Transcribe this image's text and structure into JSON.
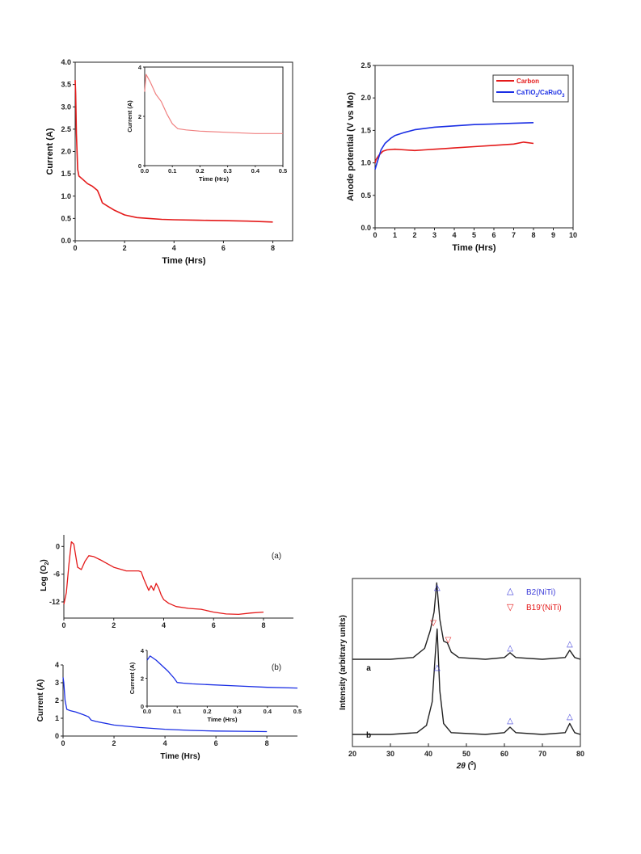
{
  "chart_data": [
    {
      "id": "current-main",
      "type": "line",
      "xlabel": "Time (Hrs)",
      "ylabel": "Current (A)",
      "xlim": [
        0,
        8.8
      ],
      "ylim": [
        0,
        4.0
      ],
      "xticks": [
        "0",
        "2",
        "4",
        "6",
        "8"
      ],
      "yticks": [
        "0.0",
        "0.5",
        "1.0",
        "1.5",
        "2.0",
        "2.5",
        "3.0",
        "3.5",
        "4.0"
      ],
      "series": [
        {
          "color": "#e41a1a",
          "x": [
            0,
            0.02,
            0.05,
            0.1,
            0.15,
            0.3,
            0.5,
            0.7,
            0.9,
            1.0,
            1.1,
            1.3,
            1.6,
            2.0,
            2.5,
            3.0,
            3.5,
            4.0,
            5.0,
            6.0,
            7.0,
            8.0
          ],
          "y": [
            3.6,
            3.3,
            2.4,
            1.6,
            1.45,
            1.38,
            1.28,
            1.22,
            1.13,
            1.0,
            0.85,
            0.78,
            0.68,
            0.58,
            0.52,
            0.5,
            0.48,
            0.47,
            0.46,
            0.45,
            0.44,
            0.42
          ]
        }
      ]
    },
    {
      "id": "current-inset",
      "type": "line",
      "xlabel": "Time (Hrs)",
      "ylabel": "Current (A)",
      "xlim": [
        0,
        0.5
      ],
      "ylim": [
        0,
        4
      ],
      "xticks": [
        "0.0",
        "0.1",
        "0.2",
        "0.3",
        "0.4",
        "0.5"
      ],
      "yticks": [
        "0",
        "2",
        "4"
      ],
      "series": [
        {
          "color": "#f08080",
          "x": [
            0,
            0.005,
            0.02,
            0.04,
            0.06,
            0.08,
            0.1,
            0.12,
            0.15,
            0.2,
            0.3,
            0.4,
            0.5
          ],
          "y": [
            3.0,
            3.7,
            3.4,
            2.9,
            2.6,
            2.1,
            1.7,
            1.5,
            1.45,
            1.4,
            1.35,
            1.3,
            1.3
          ]
        }
      ]
    },
    {
      "id": "anode-potential",
      "type": "line",
      "xlabel": "Time (Hrs)",
      "ylabel": "Anode potential (V vs Mo)",
      "xlim": [
        0,
        10
      ],
      "ylim": [
        0,
        2.5
      ],
      "xticks": [
        "0",
        "1",
        "2",
        "3",
        "4",
        "5",
        "6",
        "7",
        "8",
        "9",
        "10"
      ],
      "yticks": [
        "0.0",
        "0.5",
        "1.0",
        "1.5",
        "2.0",
        "2.5"
      ],
      "legend_position": "top-right",
      "series": [
        {
          "name": "Carbon",
          "color": "#e41a1a",
          "x": [
            0,
            0.05,
            0.2,
            0.4,
            0.6,
            1.0,
            1.5,
            2.0,
            2.5,
            3.0,
            3.5,
            4.0,
            5.0,
            6.0,
            7.0,
            7.5,
            8.0
          ],
          "y": [
            1.0,
            1.05,
            1.12,
            1.18,
            1.2,
            1.21,
            1.2,
            1.19,
            1.2,
            1.21,
            1.22,
            1.23,
            1.25,
            1.27,
            1.29,
            1.32,
            1.3
          ]
        },
        {
          "name": "CaTiO3/CaRuO3",
          "color": "#1a2ee4",
          "x": [
            0,
            0.05,
            0.1,
            0.2,
            0.3,
            0.5,
            0.8,
            1.0,
            1.5,
            2.0,
            3.0,
            4.0,
            5.0,
            6.0,
            7.0,
            8.0
          ],
          "y": [
            0.9,
            0.95,
            1.0,
            1.1,
            1.2,
            1.3,
            1.38,
            1.42,
            1.47,
            1.51,
            1.55,
            1.57,
            1.59,
            1.6,
            1.61,
            1.62
          ]
        }
      ]
    },
    {
      "id": "log-o2",
      "type": "line",
      "panel_label": "(a)",
      "xlabel": "Time (Hrs)",
      "ylabel": "Log (O2)",
      "xlim": [
        0,
        9.2
      ],
      "ylim": [
        -15.5,
        2.5
      ],
      "xticks": [
        "0",
        "2",
        "4",
        "6",
        "8"
      ],
      "yticks": [
        "0",
        "-6",
        "-12"
      ],
      "series": [
        {
          "color": "#e41a1a",
          "x": [
            0,
            0.1,
            0.2,
            0.3,
            0.4,
            0.55,
            0.7,
            0.85,
            1.0,
            1.2,
            1.5,
            2.0,
            2.5,
            3.0,
            3.1,
            3.2,
            3.4,
            3.5,
            3.6,
            3.7,
            3.8,
            3.9,
            4.0,
            4.2,
            4.5,
            5.0,
            5.5,
            6.0,
            6.5,
            7.0,
            7.5,
            8.0
          ],
          "y": [
            -12.5,
            -10,
            -4,
            1,
            0.5,
            -4.5,
            -5,
            -3.2,
            -2.0,
            -2.2,
            -3.0,
            -4.5,
            -5.3,
            -5.3,
            -5.5,
            -7,
            -9.5,
            -8.5,
            -9.5,
            -8,
            -9,
            -10.5,
            -11.5,
            -12.3,
            -13,
            -13.4,
            -13.6,
            -14.2,
            -14.6,
            -14.7,
            -14.4,
            -14.2
          ]
        }
      ]
    },
    {
      "id": "current-b",
      "type": "line",
      "panel_label": "(b)",
      "xlabel": "Time (Hrs)",
      "ylabel": "Current (A)",
      "xlim": [
        0,
        9.2
      ],
      "ylim": [
        0,
        4
      ],
      "xticks": [
        "0",
        "2",
        "4",
        "6",
        "8"
      ],
      "yticks": [
        "0",
        "1",
        "2",
        "3",
        "4"
      ],
      "series": [
        {
          "color": "#1a2ee4",
          "x": [
            0,
            0.03,
            0.08,
            0.15,
            0.3,
            0.5,
            0.8,
            1.0,
            1.1,
            1.3,
            2.0,
            3.0,
            4.0,
            5.0,
            6.0,
            7.0,
            8.0
          ],
          "y": [
            3.3,
            3.0,
            2.0,
            1.5,
            1.42,
            1.35,
            1.2,
            1.08,
            0.9,
            0.82,
            0.62,
            0.48,
            0.38,
            0.32,
            0.28,
            0.27,
            0.25
          ]
        }
      ]
    },
    {
      "id": "current-b-inset",
      "type": "line",
      "xlabel": "Time (Hrs)",
      "ylabel": "Current (A)",
      "xlim": [
        0,
        0.5
      ],
      "ylim": [
        0,
        4
      ],
      "xticks": [
        "0.0",
        "0.1",
        "0.2",
        "0.3",
        "0.4",
        "0.5"
      ],
      "yticks": [
        "0",
        "2",
        "4"
      ],
      "series": [
        {
          "color": "#1a2ee4",
          "x": [
            0,
            0.01,
            0.03,
            0.05,
            0.07,
            0.09,
            0.1,
            0.12,
            0.15,
            0.2,
            0.3,
            0.4,
            0.5
          ],
          "y": [
            3.3,
            3.6,
            3.3,
            2.9,
            2.5,
            2.0,
            1.7,
            1.65,
            1.6,
            1.55,
            1.45,
            1.35,
            1.3
          ]
        }
      ]
    },
    {
      "id": "xrd",
      "type": "line",
      "xlabel": "2θ (°)",
      "ylabel": "Intensity (arbitrary units)",
      "xlim": [
        20,
        80
      ],
      "xticks": [
        "20",
        "30",
        "40",
        "50",
        "60",
        "70",
        "80"
      ],
      "legend_position": "top-right",
      "legend": [
        {
          "name": "B2(NiTi)",
          "color": "#3b3bd9",
          "marker": "triangle-up"
        },
        {
          "name": "B19'(NiTi)",
          "color": "#e41a1a",
          "marker": "triangle-down"
        }
      ],
      "traces": [
        {
          "label": "a",
          "x": [
            20,
            30,
            36,
            39,
            40.5,
            41.5,
            42.2,
            43,
            44,
            45,
            46,
            48,
            55,
            60,
            61.5,
            63,
            70,
            76,
            77.2,
            78.5,
            80
          ],
          "y": [
            0,
            0,
            0.05,
            0.3,
            0.8,
            1.3,
            2.1,
            1.1,
            0.5,
            0.45,
            0.2,
            0.05,
            0,
            0.05,
            0.18,
            0.05,
            0,
            0.05,
            0.25,
            0.05,
            0
          ]
        },
        {
          "label": "b",
          "x": [
            20,
            30,
            37,
            39.5,
            41,
            41.8,
            42.3,
            43,
            44,
            46,
            55,
            60,
            61.5,
            63,
            70,
            76,
            77.2,
            78.5,
            80
          ],
          "y": [
            0,
            0,
            0.05,
            0.25,
            0.9,
            2.2,
            2.9,
            1.2,
            0.3,
            0.05,
            0,
            0.05,
            0.2,
            0.05,
            0,
            0.05,
            0.3,
            0.05,
            0
          ]
        }
      ]
    }
  ],
  "labels": {
    "legend_carbon": "Carbon",
    "legend_cati_main": "CaTiO",
    "legend_cati_mid": "/CaRuO",
    "legend_sub": "3",
    "logo2_main": "Log (O",
    "logo2_sub": "2",
    "logo2_close": ")",
    "panel_a": "(a)",
    "panel_b": "(b)",
    "xrd_xlabel_theta": "2θ",
    "xrd_xlabel_open": " (",
    "xrd_xlabel_deg": "0",
    "xrd_xlabel_close": ")",
    "trace_a": "a",
    "trace_b": "b",
    "xrd_legend_b2": "B2(NiTi)",
    "xrd_legend_b19": "B19'(NiTi)",
    "xrd_ylabel": "Intensity (arbitrary units)"
  }
}
